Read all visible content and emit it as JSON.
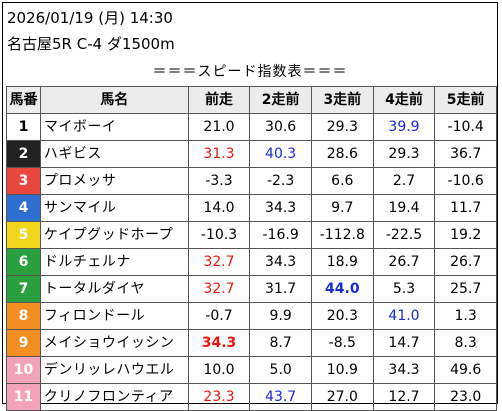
{
  "header": {
    "date_line": "2026/01/19 (月) 14:30",
    "race_line": "名古屋5R C-4 ダ1500m",
    "subtitle": "＝＝＝スピード指数表＝＝＝"
  },
  "table": {
    "columns": [
      "馬番",
      "馬名",
      "前走",
      "2走前",
      "3走前",
      "4走前",
      "5走前"
    ],
    "rows": [
      {
        "num": "1",
        "name": "マイボーイ",
        "bg": "#ffffff",
        "fg": "#000000",
        "cells": [
          {
            "v": "21.0"
          },
          {
            "v": "30.6"
          },
          {
            "v": "29.3"
          },
          {
            "v": "39.9",
            "c": "blue"
          },
          {
            "v": "-10.4"
          }
        ]
      },
      {
        "num": "2",
        "name": "ハギビス",
        "bg": "#222222",
        "fg": "#ffffff",
        "cells": [
          {
            "v": "31.3",
            "c": "red"
          },
          {
            "v": "40.3",
            "c": "blue"
          },
          {
            "v": "28.6"
          },
          {
            "v": "29.3"
          },
          {
            "v": "36.7"
          }
        ]
      },
      {
        "num": "3",
        "name": "プロメッサ",
        "bg": "#e8473f",
        "fg": "#ffffff",
        "cells": [
          {
            "v": "-3.3"
          },
          {
            "v": "-2.3"
          },
          {
            "v": "6.6"
          },
          {
            "v": "2.7"
          },
          {
            "v": "-10.6"
          }
        ]
      },
      {
        "num": "4",
        "name": "サンマイル",
        "bg": "#2f6fd1",
        "fg": "#ffffff",
        "cells": [
          {
            "v": "14.0"
          },
          {
            "v": "34.3"
          },
          {
            "v": "9.7"
          },
          {
            "v": "19.4"
          },
          {
            "v": "11.7"
          }
        ]
      },
      {
        "num": "5",
        "name": "ケイプグッドホープ",
        "bg": "#f0d71c",
        "fg": "#ffffff",
        "cells": [
          {
            "v": "-10.3"
          },
          {
            "v": "-16.9"
          },
          {
            "v": "-112.8"
          },
          {
            "v": "-22.5"
          },
          {
            "v": "19.2"
          }
        ]
      },
      {
        "num": "6",
        "name": "ドルチェルナ",
        "bg": "#29a03d",
        "fg": "#ffffff",
        "cells": [
          {
            "v": "32.7",
            "c": "red"
          },
          {
            "v": "34.3"
          },
          {
            "v": "18.9"
          },
          {
            "v": "26.7"
          },
          {
            "v": "26.7"
          }
        ]
      },
      {
        "num": "7",
        "name": "トータルダイヤ",
        "bg": "#29a03d",
        "fg": "#ffffff",
        "cells": [
          {
            "v": "32.7",
            "c": "red"
          },
          {
            "v": "31.7"
          },
          {
            "v": "44.0",
            "c": "blue",
            "b": true
          },
          {
            "v": "5.3"
          },
          {
            "v": "25.7"
          }
        ]
      },
      {
        "num": "8",
        "name": "フィロンドール",
        "bg": "#f28f22",
        "fg": "#ffffff",
        "cells": [
          {
            "v": "-0.7"
          },
          {
            "v": "9.9"
          },
          {
            "v": "20.3"
          },
          {
            "v": "41.0",
            "c": "blue"
          },
          {
            "v": "1.3"
          }
        ]
      },
      {
        "num": "9",
        "name": "メイショウイッシン",
        "bg": "#f28f22",
        "fg": "#ffffff",
        "cells": [
          {
            "v": "34.3",
            "c": "red",
            "b": true
          },
          {
            "v": "8.7"
          },
          {
            "v": "-8.5"
          },
          {
            "v": "14.7"
          },
          {
            "v": "8.3"
          }
        ]
      },
      {
        "num": "10",
        "name": "デンリッレハウエル",
        "bg": "#f2a2b9",
        "fg": "#ffffff",
        "cells": [
          {
            "v": "10.0"
          },
          {
            "v": "5.0"
          },
          {
            "v": "10.9"
          },
          {
            "v": "34.3"
          },
          {
            "v": "49.6"
          }
        ]
      },
      {
        "num": "11",
        "name": "クリノフロンティア",
        "bg": "#f2a2b9",
        "fg": "#ffffff",
        "cells": [
          {
            "v": "23.3",
            "c": "red"
          },
          {
            "v": "43.7",
            "c": "blue"
          },
          {
            "v": "27.0"
          },
          {
            "v": "12.7"
          },
          {
            "v": "23.0"
          }
        ]
      }
    ]
  }
}
